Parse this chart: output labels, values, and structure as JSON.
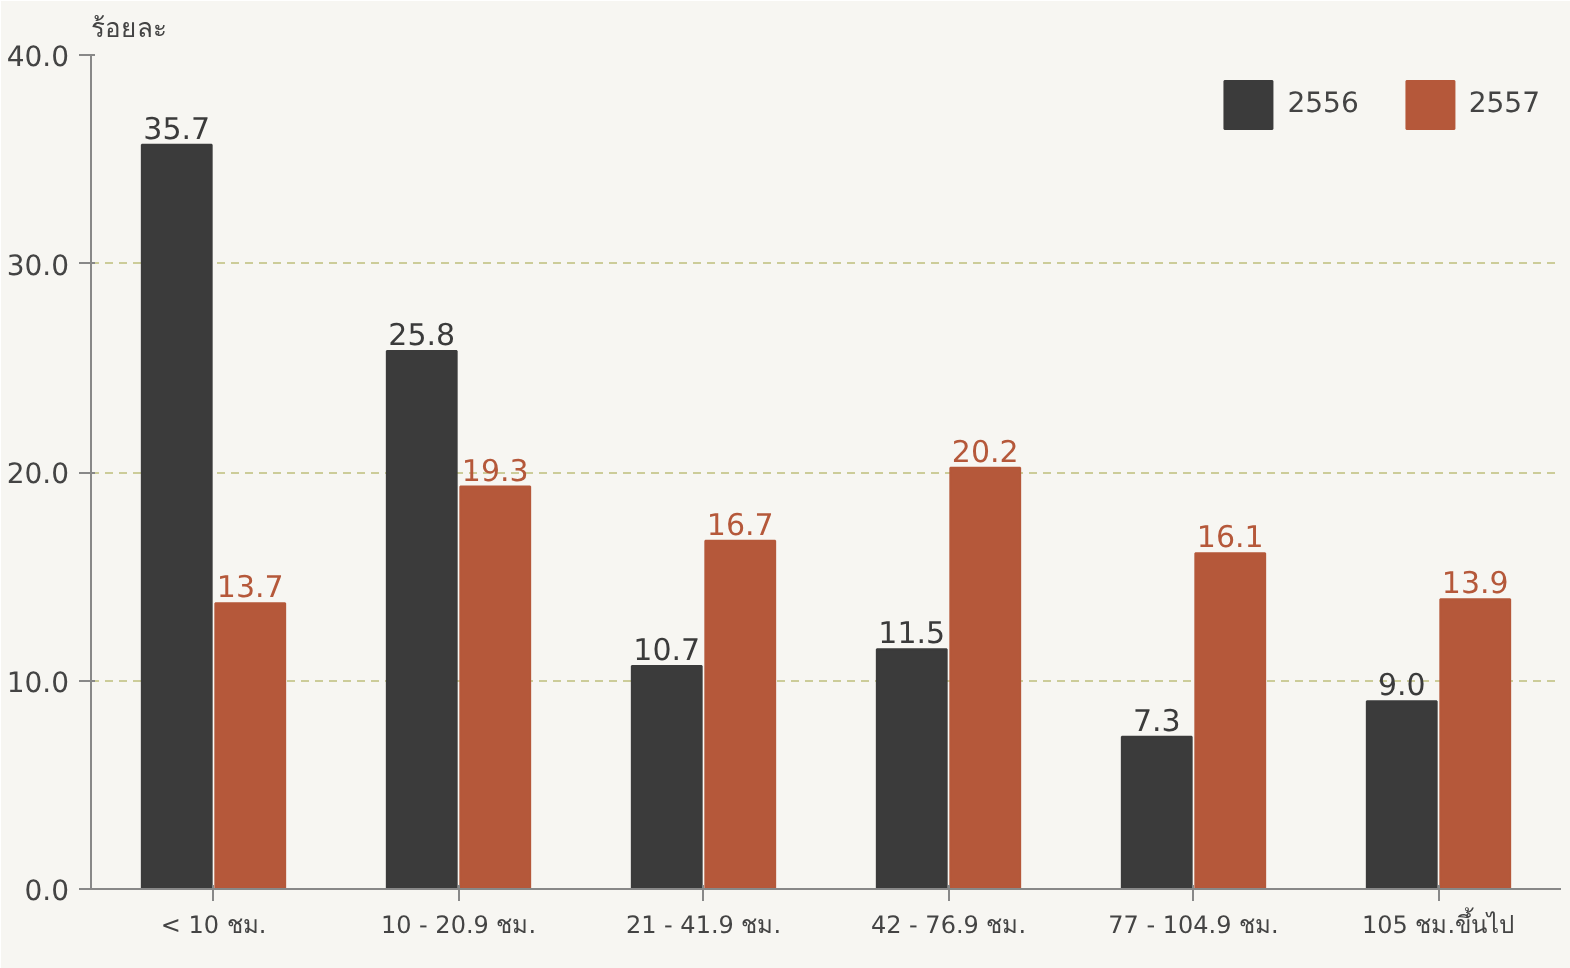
{
  "chart_data": {
    "type": "bar",
    "ylabel": "ร้อยละ",
    "categories": [
      "< 10 ชม.",
      "10 - 20.9 ชม.",
      "21 - 41.9 ชม.",
      "42 - 76.9 ชม.",
      "77 - 104.9 ชม.",
      "105 ชม.ขึ้นไป"
    ],
    "series": [
      {
        "name": "2556",
        "color": "#3b3b3b",
        "values": [
          35.7,
          25.8,
          10.7,
          11.5,
          7.3,
          9.0
        ],
        "value_labels": [
          "35.7",
          "25.8",
          "10.7",
          "11.5",
          "7.3",
          "9.0"
        ]
      },
      {
        "name": "2557",
        "color": "#b5583a",
        "values": [
          13.7,
          19.3,
          16.7,
          20.2,
          16.1,
          13.9
        ],
        "value_labels": [
          "13.7",
          "19.3",
          "16.7",
          "20.2",
          "16.1",
          "13.9"
        ]
      }
    ],
    "ylim": [
      0,
      40
    ],
    "yticks": [
      {
        "value": 0,
        "label": "0.0"
      },
      {
        "value": 10,
        "label": "10.0"
      },
      {
        "value": 20,
        "label": "20.0"
      },
      {
        "value": 30,
        "label": "30.0"
      },
      {
        "value": 40,
        "label": "40.0"
      }
    ],
    "grid": "y",
    "legend": "top right"
  }
}
